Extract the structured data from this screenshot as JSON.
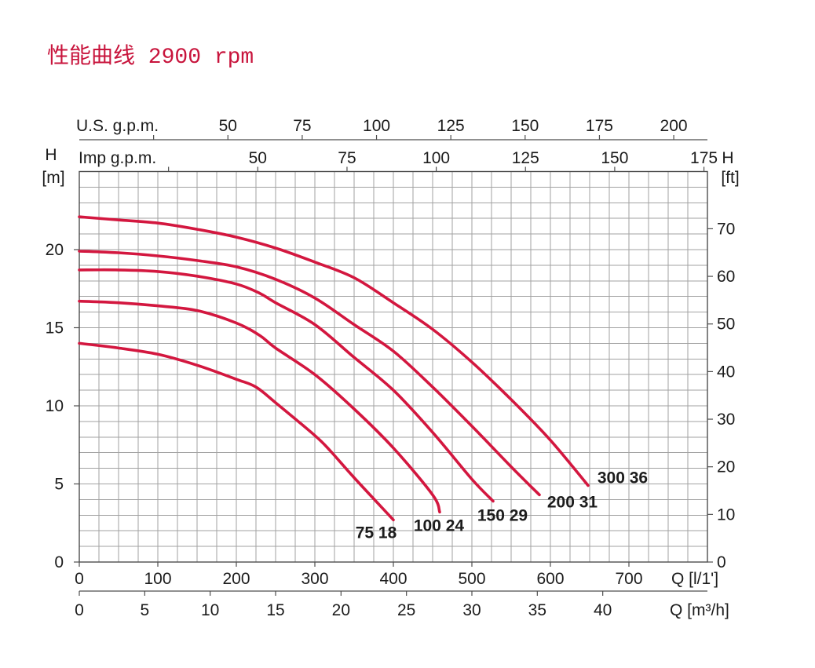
{
  "colors": {
    "title": "#c8143c",
    "curve": "#d3173f",
    "grid": "#a2a2a2",
    "frame": "#4e4e4e",
    "text": "#1c1c1c",
    "curve_label": "#1c1c1c"
  },
  "chart_data": {
    "type": "line",
    "title": "性能曲线 2900 rpm",
    "grid": true,
    "axes": {
      "q_lpm": {
        "label": "Q [l/1']",
        "range": [
          0,
          800
        ],
        "ticks": [
          0,
          100,
          200,
          300,
          400,
          500,
          600,
          700
        ]
      },
      "q_m3h": {
        "label": "Q [m³/h]",
        "ticks": [
          0,
          5,
          10,
          15,
          20,
          25,
          30,
          35,
          40
        ]
      },
      "us_gpm": {
        "label": "U.S. g.p.m.",
        "ticks": [
          50,
          75,
          100,
          125,
          150,
          175,
          200
        ]
      },
      "imp_gpm": {
        "label": "Imp g.p.m.",
        "ticks": [
          50,
          75,
          100,
          125,
          150,
          175
        ]
      },
      "h_m": {
        "label": "H",
        "unit": "[m]",
        "range": [
          0,
          25
        ],
        "ticks": [
          0,
          5,
          10,
          15,
          20
        ]
      },
      "h_ft": {
        "label": "H",
        "unit": "[ft]",
        "ticks": [
          0,
          10,
          20,
          30,
          40,
          50,
          60,
          70
        ]
      }
    },
    "series": [
      {
        "name": "75 18",
        "x": [
          0,
          50,
          100,
          150,
          200,
          225,
          250,
          300,
          320,
          350,
          400
        ],
        "y": [
          14.0,
          13.7,
          13.3,
          12.6,
          11.7,
          11.2,
          10.2,
          8.1,
          7.1,
          5.4,
          2.7
        ]
      },
      {
        "name": "100 24",
        "x": [
          0,
          50,
          100,
          150,
          200,
          230,
          250,
          300,
          350,
          400,
          450,
          459
        ],
        "y": [
          16.7,
          16.6,
          16.4,
          16.1,
          15.3,
          14.5,
          13.7,
          12.0,
          9.8,
          7.3,
          4.3,
          3.2
        ]
      },
      {
        "name": "150 29",
        "x": [
          0,
          50,
          100,
          150,
          200,
          230,
          250,
          300,
          350,
          400,
          450,
          500,
          527
        ],
        "y": [
          18.7,
          18.7,
          18.6,
          18.3,
          17.8,
          17.2,
          16.6,
          15.2,
          13.1,
          11.0,
          8.3,
          5.3,
          3.9
        ]
      },
      {
        "name": "200 31",
        "x": [
          0,
          50,
          100,
          150,
          200,
          250,
          300,
          350,
          400,
          450,
          500,
          550,
          586
        ],
        "y": [
          19.9,
          19.8,
          19.6,
          19.3,
          18.9,
          18.1,
          16.9,
          15.2,
          13.5,
          11.2,
          8.7,
          6.1,
          4.3
        ]
      },
      {
        "name": "300 36",
        "x": [
          0,
          50,
          100,
          150,
          200,
          250,
          300,
          350,
          400,
          450,
          500,
          550,
          600,
          648
        ],
        "y": [
          22.1,
          21.9,
          21.7,
          21.3,
          20.8,
          20.1,
          19.2,
          18.2,
          16.6,
          14.9,
          12.8,
          10.4,
          7.8,
          4.9
        ]
      }
    ]
  }
}
